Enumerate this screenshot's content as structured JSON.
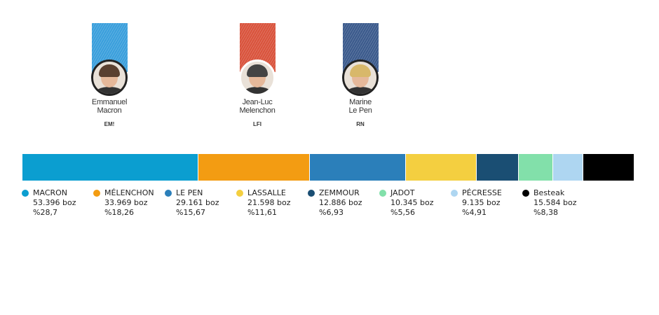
{
  "candidates_featured": [
    {
      "first": "Emmanuel",
      "last": "Macron",
      "party": "EM!",
      "color": "#3a9fdc",
      "hair": "#5a4030"
    },
    {
      "first": "Jean-Luc",
      "last": "Melenchon",
      "party": "LFI",
      "color": "#d9533c",
      "hair": "#444"
    },
    {
      "first": "Marine",
      "last": "Le Pen",
      "party": "RN",
      "color": "#3b5a8c",
      "hair": "#d8b86a"
    }
  ],
  "chart_data": {
    "type": "bar",
    "orientation": "stacked-horizontal",
    "categories": [
      "MACRON",
      "MÉLENCHON",
      "LE PEN",
      "LASSALLE",
      "ZEMMOUR",
      "JADOT",
      "PÉCRESSE",
      "Besteak"
    ],
    "votes": [
      "53.396 boz",
      "33.969 boz",
      "29.161 boz",
      "21.598 boz",
      "12.886 boz",
      "10.345 boz",
      "9.135 boz",
      "15.584 boz"
    ],
    "percent_labels": [
      "%28,7",
      "%18,26",
      "%15,67",
      "%11,61",
      "%6,93",
      "%5,56",
      "%4,91",
      "%8,38"
    ],
    "values": [
      28.7,
      18.26,
      15.67,
      11.61,
      6.93,
      5.56,
      4.91,
      8.38
    ],
    "colors": [
      "#0b9ed0",
      "#f39c12",
      "#2b7fba",
      "#f4cf40",
      "#1a4e73",
      "#82e0aa",
      "#aed6f1",
      "#000000"
    ],
    "legend": "bottom"
  }
}
